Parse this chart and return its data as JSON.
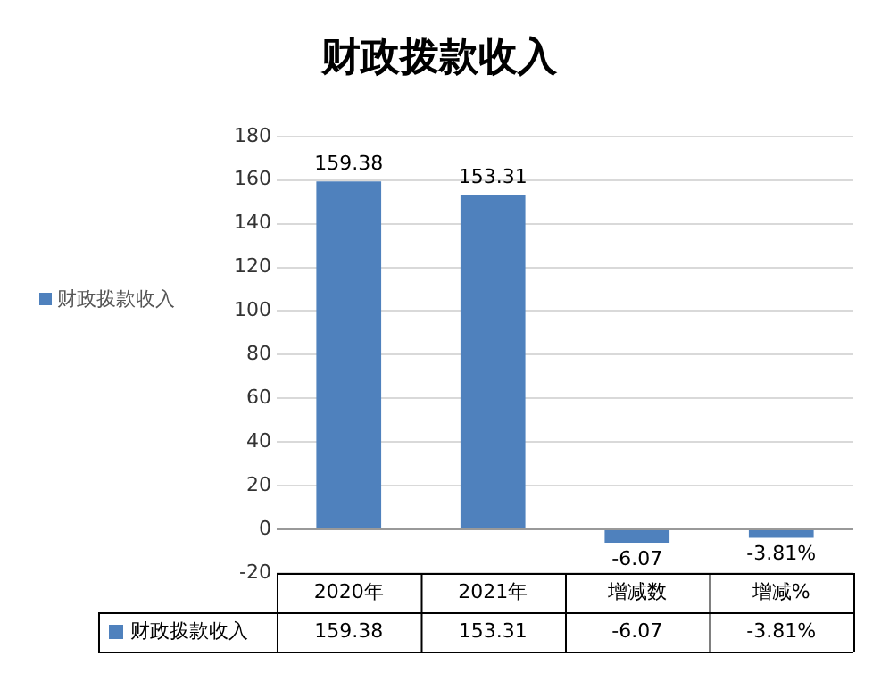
{
  "chart_data": {
    "type": "bar",
    "title": "财政拨款收入",
    "categories": [
      "2020年",
      "2021年",
      "增减数",
      "增减%"
    ],
    "series": [
      {
        "name": "财政拨款收入",
        "color": "#4f81bd",
        "values": [
          159.38,
          153.31,
          -6.07,
          -3.81
        ],
        "value_labels": [
          "159.38",
          "153.31",
          "-6.07",
          "-3.81%"
        ]
      }
    ],
    "ylim": [
      -20,
      180
    ],
    "yticks": [
      -20,
      0,
      20,
      40,
      60,
      80,
      100,
      120,
      140,
      160,
      180
    ],
    "grid": "y",
    "legend": "left"
  }
}
